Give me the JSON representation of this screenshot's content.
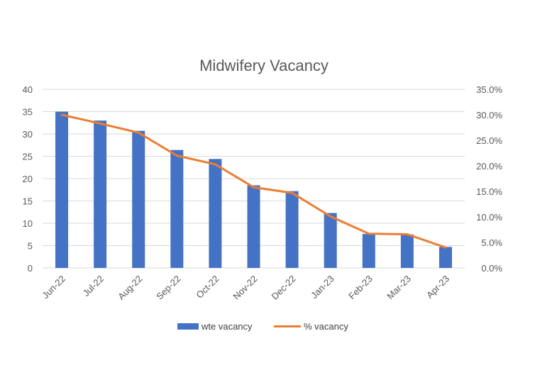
{
  "chart_data": {
    "type": "bar",
    "title": "Midwifery Vacancy",
    "categories": [
      "Jun-22",
      "Jul-22",
      "Aug-22",
      "Sep-22",
      "Oct-22",
      "Nov-22",
      "Dec-22",
      "Jan-23",
      "Feb-23",
      "Mar-23",
      "Apr-23"
    ],
    "series": [
      {
        "name": "wte vacancy",
        "type": "bar",
        "axis": "left",
        "color": "#4472C4",
        "values": [
          35,
          33,
          30.7,
          26.4,
          24.4,
          18.5,
          17.2,
          12.3,
          7.6,
          7.5,
          4.7
        ]
      },
      {
        "name": "% vacancy",
        "type": "line",
        "axis": "right",
        "color": "#ED7D31",
        "values": [
          0.3,
          0.283,
          0.265,
          0.22,
          0.203,
          0.158,
          0.147,
          0.101,
          0.067,
          0.066,
          0.04
        ]
      }
    ],
    "y_left": {
      "min": 0,
      "max": 40,
      "step": 5,
      "tick_labels": [
        "0",
        "5",
        "10",
        "15",
        "20",
        "25",
        "30",
        "35",
        "40"
      ]
    },
    "y_right": {
      "min": 0,
      "max": 0.35,
      "step": 0.05,
      "tick_labels": [
        "0.0%",
        "5.0%",
        "10.0%",
        "15.0%",
        "20.0%",
        "25.0%",
        "30.0%",
        "35.0%"
      ]
    },
    "grid": true,
    "legend_position": "bottom"
  }
}
